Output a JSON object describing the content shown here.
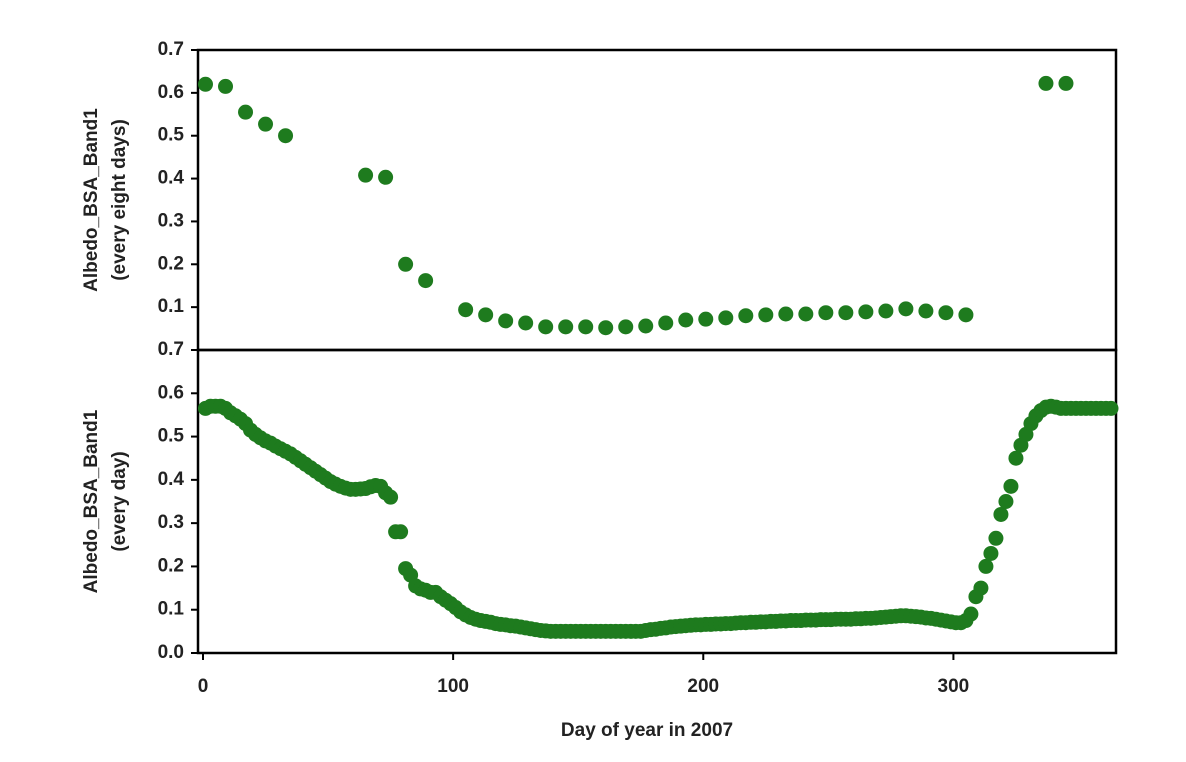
{
  "chart_data": [
    {
      "type": "scatter",
      "y_label": [
        "Albedo_BSA_Band1",
        "(every eight days)"
      ],
      "color": "#1e7b1e",
      "xlim": [
        -2,
        365
      ],
      "ylim": [
        0,
        0.7
      ],
      "yticks": [
        0.1,
        0.2,
        0.3,
        0.4,
        0.5,
        0.6,
        0.7
      ],
      "x": [
        1,
        9,
        17,
        25,
        33,
        65,
        73,
        81,
        89,
        105,
        113,
        121,
        129,
        137,
        145,
        153,
        161,
        169,
        177,
        185,
        193,
        201,
        209,
        217,
        225,
        233,
        241,
        249,
        257,
        265,
        273,
        281,
        289,
        297,
        305,
        337,
        345
      ],
      "values": [
        0.62,
        0.615,
        0.555,
        0.527,
        0.5,
        0.408,
        0.403,
        0.2,
        0.162,
        0.094,
        0.082,
        0.068,
        0.063,
        0.054,
        0.054,
        0.054,
        0.052,
        0.054,
        0.056,
        0.063,
        0.07,
        0.072,
        0.075,
        0.08,
        0.082,
        0.084,
        0.084,
        0.087,
        0.087,
        0.089,
        0.091,
        0.096,
        0.091,
        0.087,
        0.082,
        0.622,
        0.622
      ]
    },
    {
      "type": "scatter",
      "y_label": [
        "Albedo_BSA_Band1",
        "(every day)"
      ],
      "x_label": "Day of year in 2007",
      "color": "#1e7b1e",
      "xlim": [
        -2,
        365
      ],
      "xticks": [
        0,
        100,
        200,
        300
      ],
      "ylim": [
        0,
        0.7
      ],
      "yticks": [
        {
          "value": 0,
          "label": "0.0"
        },
        0.1,
        0.2,
        0.3,
        0.4,
        0.5,
        0.6,
        0.7
      ],
      "x": [
        1,
        3,
        5,
        7,
        9,
        11,
        13,
        15,
        17,
        19,
        21,
        23,
        25,
        27,
        29,
        31,
        33,
        35,
        37,
        39,
        41,
        43,
        45,
        47,
        49,
        51,
        53,
        55,
        57,
        59,
        61,
        63,
        65,
        67,
        69,
        71,
        73,
        75,
        77,
        79,
        81,
        83,
        85,
        87,
        89,
        91,
        93,
        95,
        97,
        99,
        101,
        103,
        105,
        107,
        109,
        111,
        113,
        115,
        117,
        119,
        121,
        123,
        125,
        127,
        129,
        131,
        133,
        135,
        137,
        139,
        141,
        143,
        145,
        147,
        149,
        151,
        153,
        155,
        157,
        159,
        161,
        163,
        165,
        167,
        169,
        171,
        173,
        175,
        177,
        179,
        181,
        183,
        185,
        187,
        189,
        191,
        193,
        195,
        197,
        199,
        201,
        203,
        205,
        207,
        209,
        211,
        213,
        215,
        217,
        219,
        221,
        223,
        225,
        227,
        229,
        231,
        233,
        235,
        237,
        239,
        241,
        243,
        245,
        247,
        249,
        251,
        253,
        255,
        257,
        259,
        261,
        263,
        265,
        267,
        269,
        271,
        273,
        275,
        277,
        279,
        281,
        283,
        285,
        287,
        289,
        291,
        293,
        295,
        297,
        299,
        301,
        303,
        305,
        307,
        309,
        311,
        313,
        315,
        317,
        319,
        321,
        323,
        325,
        327,
        329,
        331,
        333,
        335,
        337,
        339,
        341,
        343,
        345,
        347,
        349,
        351,
        353,
        355,
        357,
        359,
        361,
        363
      ],
      "values": [
        0.565,
        0.57,
        0.57,
        0.57,
        0.565,
        0.555,
        0.548,
        0.54,
        0.53,
        0.515,
        0.505,
        0.497,
        0.49,
        0.485,
        0.478,
        0.472,
        0.466,
        0.46,
        0.452,
        0.444,
        0.436,
        0.428,
        0.42,
        0.412,
        0.404,
        0.396,
        0.39,
        0.385,
        0.381,
        0.378,
        0.378,
        0.379,
        0.38,
        0.384,
        0.387,
        0.385,
        0.37,
        0.36,
        0.28,
        0.28,
        0.195,
        0.18,
        0.155,
        0.148,
        0.145,
        0.14,
        0.14,
        0.13,
        0.122,
        0.114,
        0.105,
        0.095,
        0.088,
        0.082,
        0.078,
        0.075,
        0.073,
        0.071,
        0.068,
        0.066,
        0.065,
        0.063,
        0.062,
        0.06,
        0.058,
        0.056,
        0.054,
        0.052,
        0.051,
        0.05,
        0.05,
        0.05,
        0.05,
        0.05,
        0.05,
        0.05,
        0.05,
        0.05,
        0.05,
        0.05,
        0.05,
        0.05,
        0.05,
        0.05,
        0.05,
        0.05,
        0.05,
        0.05,
        0.052,
        0.054,
        0.055,
        0.057,
        0.058,
        0.06,
        0.061,
        0.062,
        0.063,
        0.064,
        0.065,
        0.065,
        0.066,
        0.066,
        0.067,
        0.067,
        0.068,
        0.068,
        0.069,
        0.07,
        0.07,
        0.071,
        0.071,
        0.072,
        0.072,
        0.073,
        0.073,
        0.074,
        0.074,
        0.075,
        0.075,
        0.075,
        0.076,
        0.076,
        0.076,
        0.077,
        0.077,
        0.077,
        0.078,
        0.078,
        0.078,
        0.078,
        0.079,
        0.079,
        0.08,
        0.08,
        0.081,
        0.082,
        0.083,
        0.084,
        0.085,
        0.086,
        0.086,
        0.085,
        0.084,
        0.083,
        0.081,
        0.08,
        0.078,
        0.076,
        0.074,
        0.072,
        0.07,
        0.07,
        0.075,
        0.09,
        0.13,
        0.15,
        0.2,
        0.23,
        0.265,
        0.32,
        0.35,
        0.385,
        0.45,
        0.48,
        0.505,
        0.53,
        0.548,
        0.56,
        0.568,
        0.57,
        0.568,
        0.565,
        0.565,
        0.565,
        0.565,
        0.565,
        0.565,
        0.565,
        0.565,
        0.565,
        0.565,
        0.565
      ]
    }
  ]
}
